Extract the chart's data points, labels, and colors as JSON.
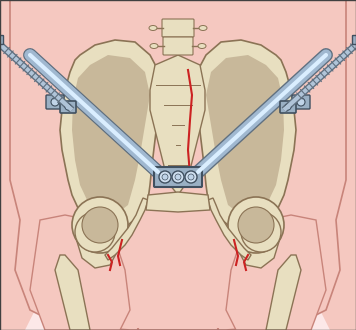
{
  "bg_color": "#fce8e8",
  "skin_color": "#f5c8c0",
  "skin_edge_color": "#c8847a",
  "bone_fill": "#e8dfc0",
  "bone_edge": "#8b7355",
  "bone_inner": "#c8b89a",
  "red_fracture": "#cc2222",
  "rod_color": "#a0b8d0",
  "rod_edge": "#607080",
  "clamp_color": "#8090a0",
  "clamp_edge": "#405060",
  "pin_color": "#b0c4d8",
  "pin_edge": "#506070",
  "hardware_fill": "#9ab0c4",
  "hardware_edge": "#405060",
  "fig_width": 3.56,
  "fig_height": 3.3,
  "dpi": 100
}
